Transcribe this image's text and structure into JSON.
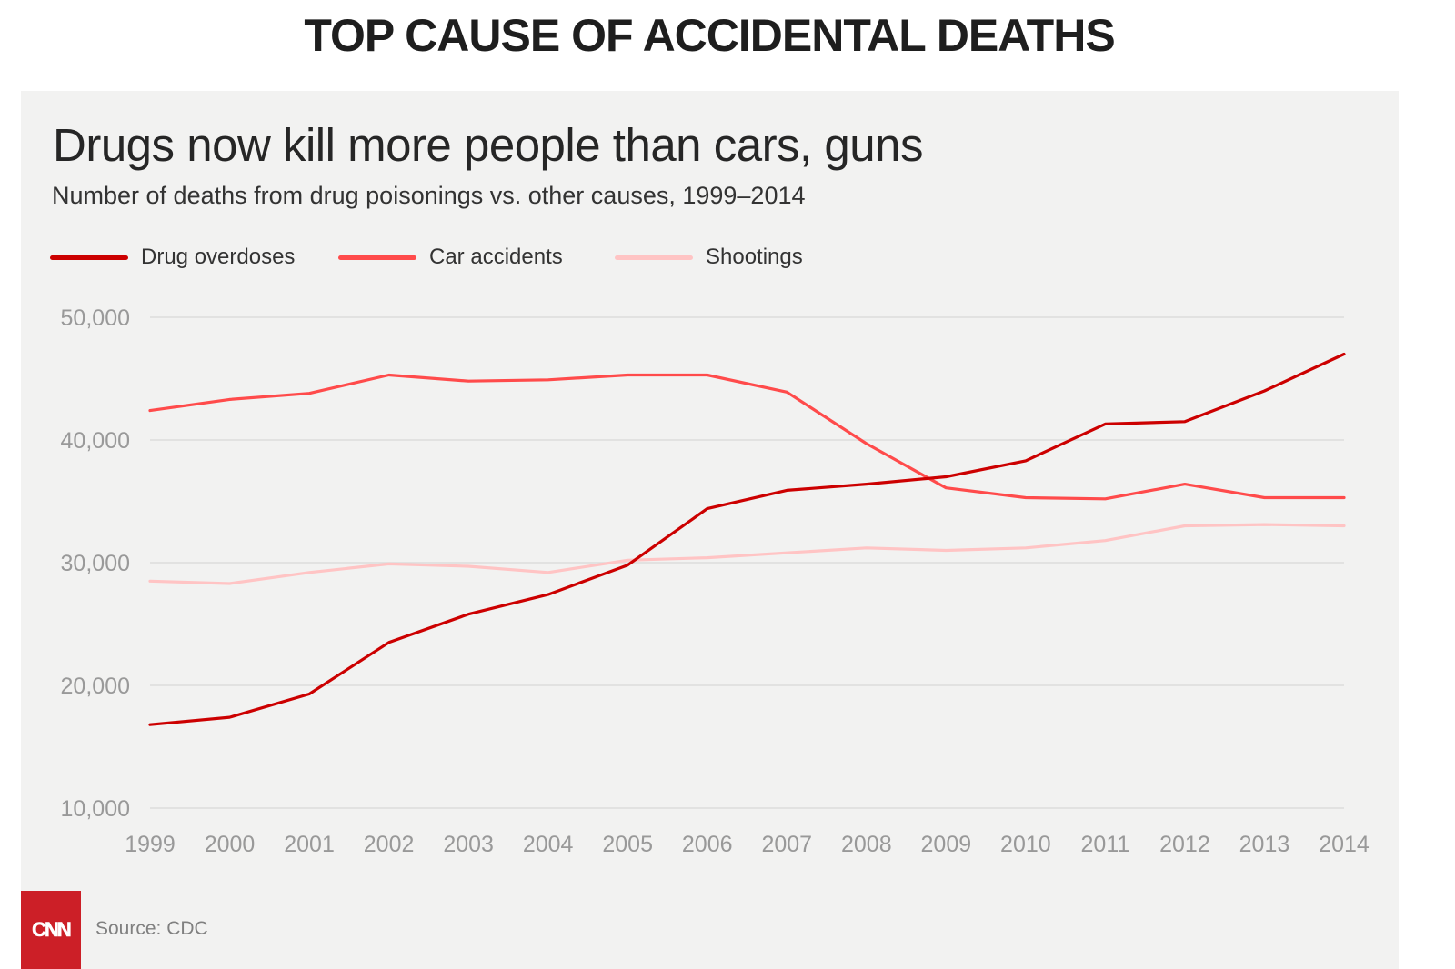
{
  "headline": "TOP CAUSE OF ACCIDENTAL DEATHS",
  "footer": {
    "logo_text": "CNN",
    "source": "Source: CDC"
  },
  "colors": {
    "background": "#f2f2f1",
    "gridline": "#dcdcdc",
    "tick_label": "#999999",
    "logo": "#cc1f27"
  },
  "chart_data": {
    "type": "line",
    "title": "Drugs now kill more people than cars, guns",
    "subtitle": "Number of deaths from drug poisonings vs. other causes, 1999–2014",
    "xlabel": "",
    "ylabel": "",
    "x": [
      1999,
      2000,
      2001,
      2002,
      2003,
      2004,
      2005,
      2006,
      2007,
      2008,
      2009,
      2010,
      2011,
      2012,
      2013,
      2014
    ],
    "x_tick_labels": [
      "1999",
      "2000",
      "2001",
      "2002",
      "2003",
      "2004",
      "2005",
      "2006",
      "2007",
      "2008",
      "2009",
      "2010",
      "2011",
      "2012",
      "2013",
      "2014"
    ],
    "ylim": [
      10000,
      50000
    ],
    "y_ticks": [
      10000,
      20000,
      30000,
      40000,
      50000
    ],
    "y_tick_labels": [
      "10,000",
      "20,000",
      "30,000",
      "40,000",
      "50,000"
    ],
    "grid": true,
    "legend_position": "top-left",
    "series": [
      {
        "name": "Drug overdoses",
        "color": "#cc0000",
        "values": [
          16800,
          17400,
          19300,
          23500,
          25800,
          27400,
          29800,
          34400,
          35900,
          36400,
          37000,
          38300,
          41300,
          41500,
          44000,
          47000
        ]
      },
      {
        "name": "Car accidents",
        "color": "#ff4b4b",
        "values": [
          42400,
          43300,
          43800,
          45300,
          44800,
          44900,
          45300,
          45300,
          43900,
          39700,
          36100,
          35300,
          35200,
          36400,
          35300,
          35300
        ]
      },
      {
        "name": "Shootings",
        "color": "#ffc4c4",
        "values": [
          28500,
          28300,
          29200,
          29900,
          29700,
          29200,
          30200,
          30400,
          30800,
          31200,
          31000,
          31200,
          31800,
          33000,
          33100,
          33000
        ]
      }
    ]
  }
}
